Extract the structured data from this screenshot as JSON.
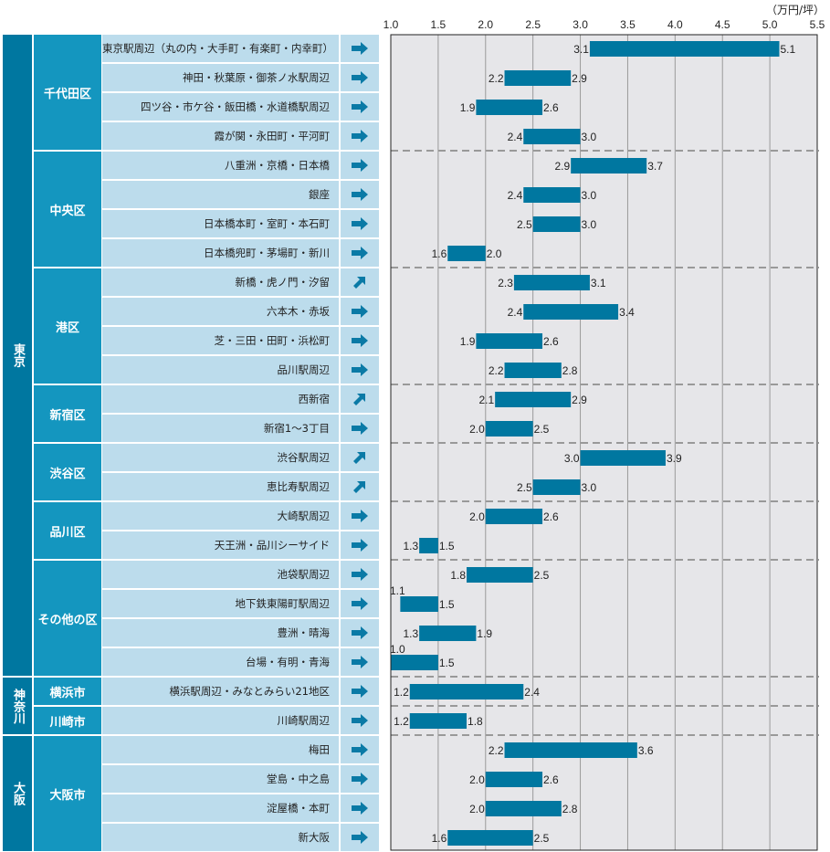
{
  "chart_data": {
    "type": "bar",
    "subtype": "floating-range-horizontal",
    "unit_label": "（万円/坪）",
    "xlim": [
      1.0,
      5.5
    ],
    "x_ticks": [
      "1.0",
      "1.5",
      "2.0",
      "2.5",
      "3.0",
      "3.5",
      "4.0",
      "4.5",
      "5.0",
      "5.5"
    ],
    "grid": true,
    "bar_color": "#0077a0",
    "rows": [
      {
        "region": "東京",
        "district": "千代田区",
        "area": "東京駅周辺（丸の内・大手町・有楽町・内幸町）",
        "trend": "flat",
        "low": 3.1,
        "high": 5.1,
        "low_label": "3.1",
        "high_label": "5.1"
      },
      {
        "region": "東京",
        "district": "千代田区",
        "area": "神田・秋葉原・御茶ノ水駅周辺",
        "trend": "flat",
        "low": 2.2,
        "high": 2.9,
        "low_label": "2.2",
        "high_label": "2.9"
      },
      {
        "region": "東京",
        "district": "千代田区",
        "area": "四ツ谷・市ケ谷・飯田橋・水道橋駅周辺",
        "trend": "flat",
        "low": 1.9,
        "high": 2.6,
        "low_label": "1.9",
        "high_label": "2.6"
      },
      {
        "region": "東京",
        "district": "千代田区",
        "area": "霞が関・永田町・平河町",
        "trend": "flat",
        "low": 2.4,
        "high": 3.0,
        "low_label": "2.4",
        "high_label": "3.0"
      },
      {
        "region": "東京",
        "district": "中央区",
        "area": "八重洲・京橋・日本橋",
        "trend": "flat",
        "low": 2.9,
        "high": 3.7,
        "low_label": "2.9",
        "high_label": "3.7"
      },
      {
        "region": "東京",
        "district": "中央区",
        "area": "銀座",
        "trend": "flat",
        "low": 2.4,
        "high": 3.0,
        "low_label": "2.4",
        "high_label": "3.0"
      },
      {
        "region": "東京",
        "district": "中央区",
        "area": "日本橋本町・室町・本石町",
        "trend": "flat",
        "low": 2.5,
        "high": 3.0,
        "low_label": "2.5",
        "high_label": "3.0"
      },
      {
        "region": "東京",
        "district": "中央区",
        "area": "日本橋兜町・茅場町・新川",
        "trend": "flat",
        "low": 1.6,
        "high": 2.0,
        "low_label": "1.6",
        "high_label": "2.0"
      },
      {
        "region": "東京",
        "district": "港区",
        "area": "新橋・虎ノ門・汐留",
        "trend": "up",
        "low": 2.3,
        "high": 3.1,
        "low_label": "2.3",
        "high_label": "3.1"
      },
      {
        "region": "東京",
        "district": "港区",
        "area": "六本木・赤坂",
        "trend": "flat",
        "low": 2.4,
        "high": 3.4,
        "low_label": "2.4",
        "high_label": "3.4"
      },
      {
        "region": "東京",
        "district": "港区",
        "area": "芝・三田・田町・浜松町",
        "trend": "flat",
        "low": 1.9,
        "high": 2.6,
        "low_label": "1.9",
        "high_label": "2.6"
      },
      {
        "region": "東京",
        "district": "港区",
        "area": "品川駅周辺",
        "trend": "flat",
        "low": 2.2,
        "high": 2.8,
        "low_label": "2.2",
        "high_label": "2.8"
      },
      {
        "region": "東京",
        "district": "新宿区",
        "area": "西新宿",
        "trend": "up",
        "low": 2.1,
        "high": 2.9,
        "low_label": "2.1",
        "high_label": "2.9"
      },
      {
        "region": "東京",
        "district": "新宿区",
        "area": "新宿1～3丁目",
        "trend": "flat",
        "low": 2.0,
        "high": 2.5,
        "low_label": "2.0",
        "high_label": "2.5"
      },
      {
        "region": "東京",
        "district": "渋谷区",
        "area": "渋谷駅周辺",
        "trend": "up",
        "low": 3.0,
        "high": 3.9,
        "low_label": "3.0",
        "high_label": "3.9"
      },
      {
        "region": "東京",
        "district": "渋谷区",
        "area": "恵比寿駅周辺",
        "trend": "up",
        "low": 2.5,
        "high": 3.0,
        "low_label": "2.5",
        "high_label": "3.0"
      },
      {
        "region": "東京",
        "district": "品川区",
        "area": "大崎駅周辺",
        "trend": "flat",
        "low": 2.0,
        "high": 2.6,
        "low_label": "2.0",
        "high_label": "2.6"
      },
      {
        "region": "東京",
        "district": "品川区",
        "area": "天王洲・品川シーサイド",
        "trend": "flat",
        "low": 1.3,
        "high": 1.5,
        "low_label": "1.3",
        "high_label": "1.5"
      },
      {
        "region": "東京",
        "district": "その他の区",
        "area": "池袋駅周辺",
        "trend": "flat",
        "low": 1.8,
        "high": 2.5,
        "low_label": "1.8",
        "high_label": "2.5"
      },
      {
        "region": "東京",
        "district": "その他の区",
        "area": "地下鉄東陽町駅周辺",
        "trend": "flat",
        "low": 1.1,
        "high": 1.5,
        "low_label": "1.1",
        "high_label": "1.5"
      },
      {
        "region": "東京",
        "district": "その他の区",
        "area": "豊洲・晴海",
        "trend": "flat",
        "low": 1.3,
        "high": 1.9,
        "low_label": "1.3",
        "high_label": "1.9"
      },
      {
        "region": "東京",
        "district": "その他の区",
        "area": "台場・有明・青海",
        "trend": "flat",
        "low": 1.0,
        "high": 1.5,
        "low_label": "1.0",
        "high_label": "1.5"
      },
      {
        "region": "神奈川",
        "district": "横浜市",
        "area": "横浜駅周辺・みなとみらい21地区",
        "trend": "flat",
        "low": 1.2,
        "high": 2.4,
        "low_label": "1.2",
        "high_label": "2.4"
      },
      {
        "region": "神奈川",
        "district": "川崎市",
        "area": "川崎駅周辺",
        "trend": "flat",
        "low": 1.2,
        "high": 1.8,
        "low_label": "1.2",
        "high_label": "1.8"
      },
      {
        "region": "大阪",
        "district": "大阪市",
        "area": "梅田",
        "trend": "flat",
        "low": 2.2,
        "high": 3.6,
        "low_label": "2.2",
        "high_label": "3.6"
      },
      {
        "region": "大阪",
        "district": "大阪市",
        "area": "堂島・中之島",
        "trend": "flat",
        "low": 2.0,
        "high": 2.6,
        "low_label": "2.0",
        "high_label": "2.6"
      },
      {
        "region": "大阪",
        "district": "大阪市",
        "area": "淀屋橋・本町",
        "trend": "flat",
        "low": 2.0,
        "high": 2.8,
        "low_label": "2.0",
        "high_label": "2.8"
      },
      {
        "region": "大阪",
        "district": "大阪市",
        "area": "新大阪",
        "trend": "flat",
        "low": 1.6,
        "high": 2.5,
        "low_label": "1.6",
        "high_label": "2.5"
      }
    ]
  },
  "regions": [
    {
      "name": "東京",
      "rows": 22
    },
    {
      "name": "神奈川",
      "rows": 2
    },
    {
      "name": "大阪",
      "rows": 4
    }
  ],
  "districts": [
    {
      "name": "千代田区",
      "rows": 4
    },
    {
      "name": "中央区",
      "rows": 4
    },
    {
      "name": "港区",
      "rows": 4
    },
    {
      "name": "新宿区",
      "rows": 2
    },
    {
      "name": "渋谷区",
      "rows": 2
    },
    {
      "name": "品川区",
      "rows": 2
    },
    {
      "name": "その他の区",
      "rows": 4
    },
    {
      "name": "横浜市",
      "rows": 1
    },
    {
      "name": "川崎市",
      "rows": 1
    },
    {
      "name": "大阪市",
      "rows": 4
    }
  ],
  "colors": {
    "region_bg": "#0077a0",
    "district_bg": "#1496bf",
    "area_bg": "#bcdcec",
    "arrow": "#0a7aa6",
    "plot_bg": "#e6e6e9",
    "grid": "#9a9a9a",
    "dash": "#999999"
  }
}
